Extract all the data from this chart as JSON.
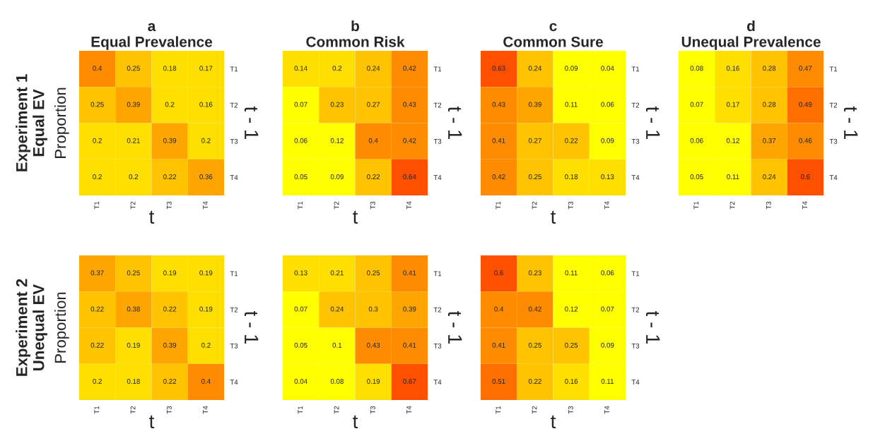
{
  "chart_data": [
    {
      "type": "heatmap",
      "title": "a\nEqual Prevalence",
      "xlabel": "t",
      "ylabel": "Proportion",
      "y2label": "t - 1",
      "annotations": [
        "Experiment 1\nEqual EV"
      ],
      "categories": [
        "T1",
        "T2",
        "T3",
        "T4"
      ],
      "y_categories": [
        "T1",
        "T2",
        "T3",
        "T4"
      ],
      "data_labels": true,
      "cells": [
        [
          0.4,
          0.25,
          0.18,
          0.17
        ],
        [
          0.25,
          0.39,
          0.2,
          0.16
        ],
        [
          0.2,
          0.21,
          0.39,
          0.2
        ],
        [
          0.2,
          0.2,
          0.22,
          0.36
        ]
      ]
    },
    {
      "type": "heatmap",
      "title": "b\nCommon Risk",
      "xlabel": "t",
      "y2label": "t - 1",
      "categories": [
        "T1",
        "T2",
        "T3",
        "T4"
      ],
      "y_categories": [
        "T1",
        "T2",
        "T3",
        "T4"
      ],
      "data_labels": true,
      "cells": [
        [
          0.14,
          0.2,
          0.24,
          0.42
        ],
        [
          0.07,
          0.23,
          0.27,
          0.43
        ],
        [
          0.06,
          0.12,
          0.4,
          0.42
        ],
        [
          0.05,
          0.09,
          0.22,
          0.64
        ]
      ]
    },
    {
      "type": "heatmap",
      "title": "c\nCommon Sure",
      "xlabel": "t",
      "y2label": "t - 1",
      "categories": [
        "T1",
        "T2",
        "T3",
        "T4"
      ],
      "y_categories": [
        "T1",
        "T2",
        "T3",
        "T4"
      ],
      "data_labels": true,
      "cells": [
        [
          0.63,
          0.24,
          0.09,
          0.04
        ],
        [
          0.43,
          0.39,
          0.11,
          0.06
        ],
        [
          0.41,
          0.27,
          0.22,
          0.09
        ],
        [
          0.42,
          0.25,
          0.18,
          0.13
        ]
      ]
    },
    {
      "type": "heatmap",
      "title": "d\nUnequal Prevalence",
      "y2label": "t - 1",
      "categories": [
        "T1",
        "T2",
        "T3",
        "T4"
      ],
      "y_categories": [
        "T1",
        "T2",
        "T3",
        "T4"
      ],
      "data_labels": true,
      "cells": [
        [
          0.08,
          0.16,
          0.28,
          0.47
        ],
        [
          0.07,
          0.17,
          0.28,
          0.49
        ],
        [
          0.06,
          0.12,
          0.37,
          0.46
        ],
        [
          0.05,
          0.11,
          0.24,
          0.6
        ]
      ]
    },
    {
      "type": "heatmap",
      "xlabel": "t",
      "ylabel": "Proportion",
      "y2label": "t - 1",
      "annotations": [
        "Experiment 2\nUnequal EV"
      ],
      "categories": [
        "T1",
        "T2",
        "T3",
        "T4"
      ],
      "y_categories": [
        "T1",
        "T2",
        "T3",
        "T4"
      ],
      "data_labels": true,
      "cells": [
        [
          0.37,
          0.25,
          0.19,
          0.19
        ],
        [
          0.22,
          0.38,
          0.22,
          0.19
        ],
        [
          0.22,
          0.19,
          0.39,
          0.2
        ],
        [
          0.2,
          0.18,
          0.22,
          0.4
        ]
      ]
    },
    {
      "type": "heatmap",
      "xlabel": "t",
      "y2label": "t - 1",
      "categories": [
        "T1",
        "T2",
        "T3",
        "T4"
      ],
      "y_categories": [
        "T1",
        "T2",
        "T3",
        "T4"
      ],
      "data_labels": true,
      "cells": [
        [
          0.13,
          0.21,
          0.25,
          0.41
        ],
        [
          0.07,
          0.24,
          0.3,
          0.39
        ],
        [
          0.05,
          0.1,
          0.43,
          0.41
        ],
        [
          0.04,
          0.08,
          0.19,
          0.67
        ]
      ]
    },
    {
      "type": "heatmap",
      "xlabel": "t",
      "y2label": "t - 1",
      "categories": [
        "T1",
        "T2",
        "T3",
        "T4"
      ],
      "y_categories": [
        "T1",
        "T2",
        "T3",
        "T4"
      ],
      "data_labels": true,
      "cells": [
        [
          0.6,
          0.23,
          0.11,
          0.06
        ],
        [
          0.4,
          0.42,
          0.12,
          0.07
        ],
        [
          0.41,
          0.25,
          0.25,
          0.09
        ],
        [
          0.51,
          0.22,
          0.16,
          0.11
        ]
      ]
    }
  ]
}
